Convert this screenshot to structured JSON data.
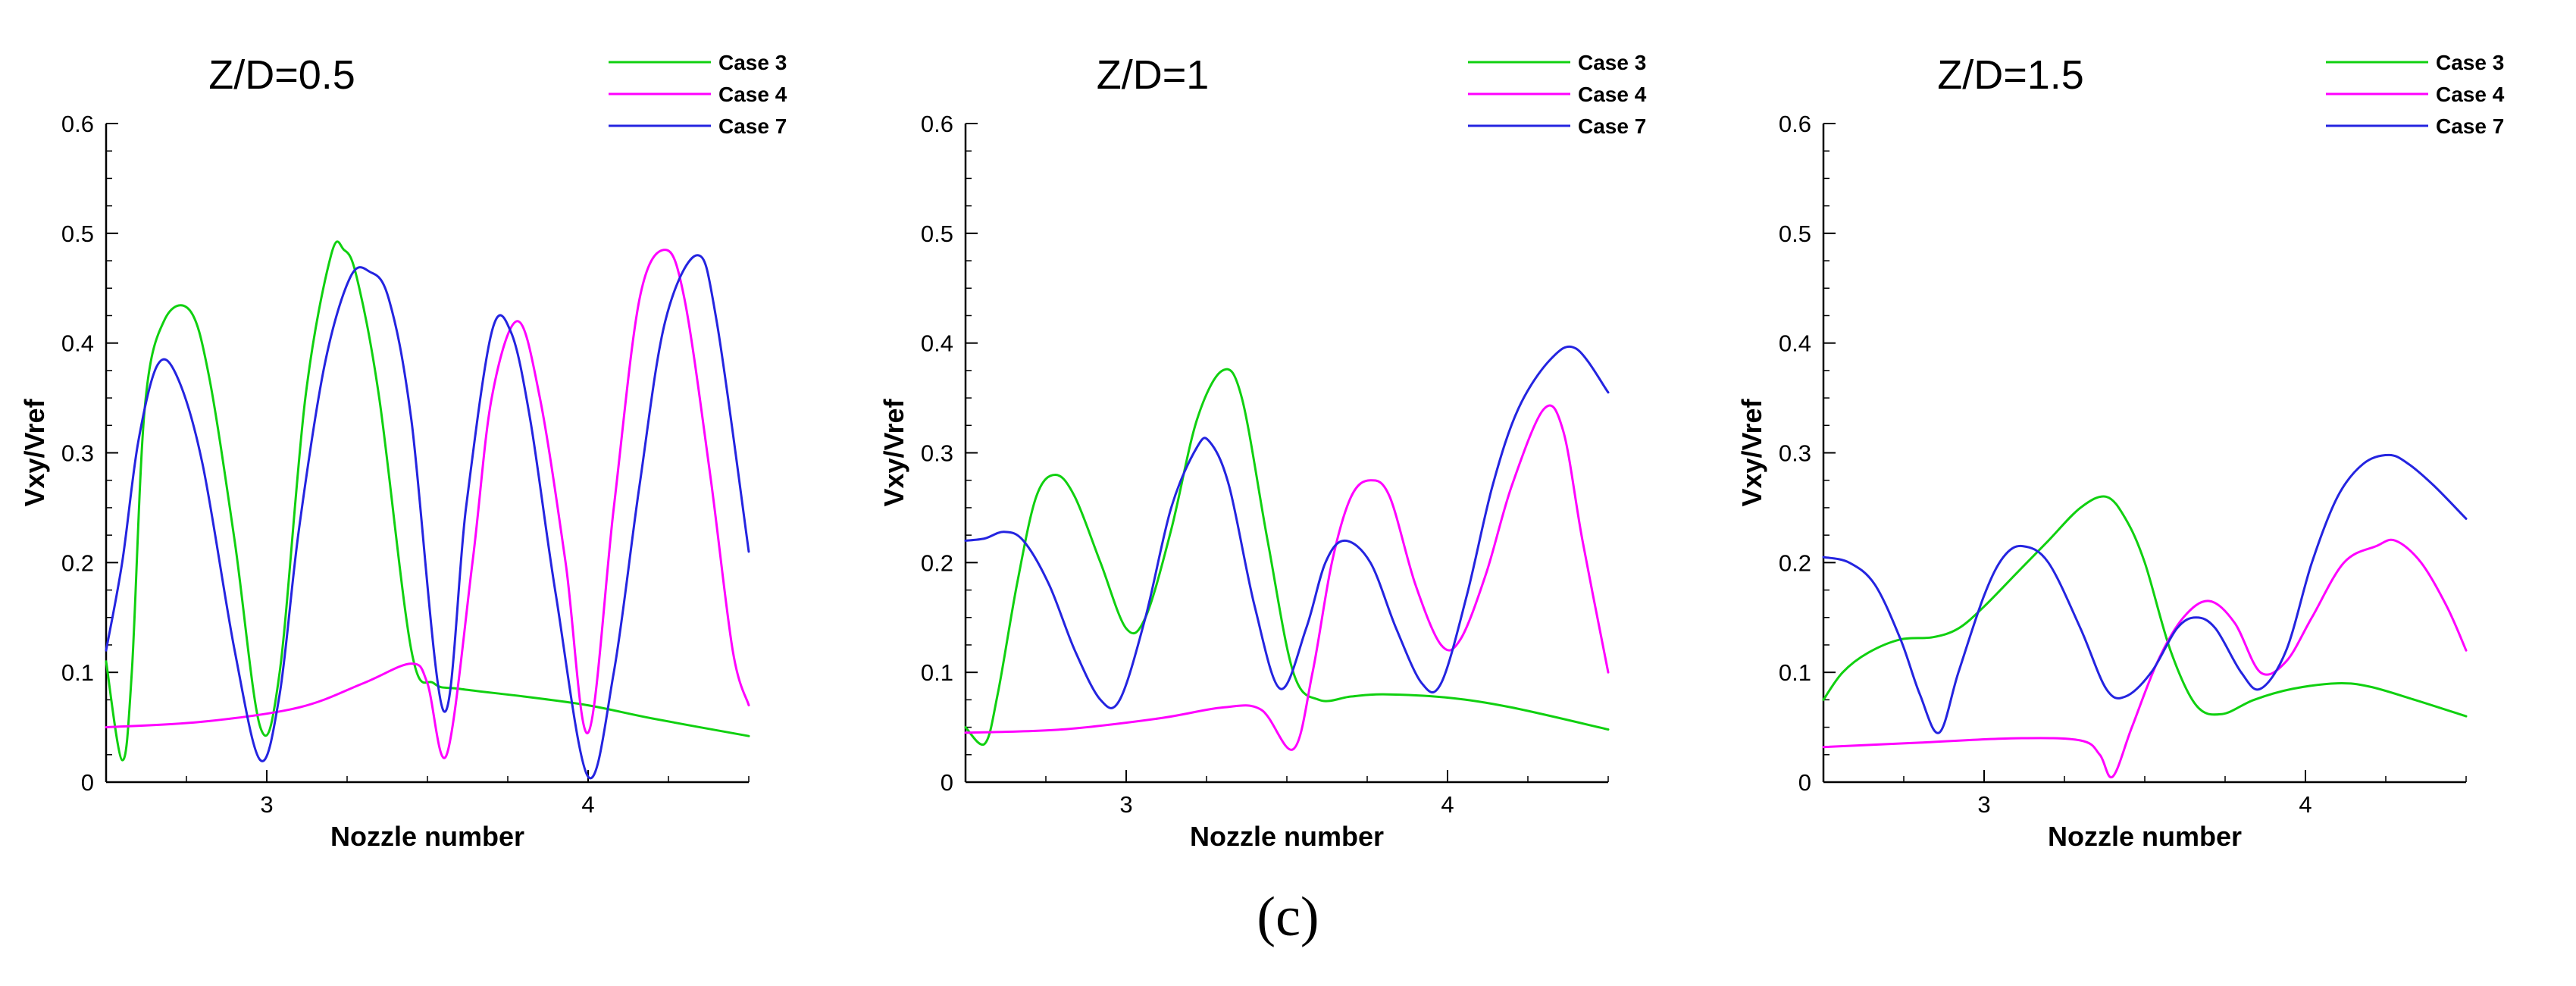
{
  "figure": {
    "caption": "(c)",
    "colors": {
      "case3": "#10d010",
      "case4": "#ff00ff",
      "case7": "#2424e0",
      "axis": "#000000"
    }
  },
  "chart_data": [
    {
      "type": "line",
      "title": "Z/D=0.5",
      "xlabel": "Nozzle number",
      "ylabel": "Vxy/Vref",
      "xlim": [
        2.5,
        4.5
      ],
      "ylim": [
        0,
        0.6
      ],
      "xticks": [
        3,
        4
      ],
      "xtick_labels": [
        "3",
        "4"
      ],
      "yticks": [
        0,
        0.1,
        0.2,
        0.3,
        0.4,
        0.5,
        0.6
      ],
      "ytick_labels": [
        "0",
        "0.1",
        "0.2",
        "0.3",
        "0.4",
        "0.5",
        "0.6"
      ],
      "legend": [
        "Case 3",
        "Case 4",
        "Case 7"
      ],
      "legend_position": "top-right",
      "series": [
        {
          "name": "Case 3",
          "color": "#10d010",
          "x": [
            2.5,
            2.55,
            2.58,
            2.62,
            2.68,
            2.76,
            2.82,
            2.9,
            2.98,
            3.04,
            3.12,
            3.2,
            3.24,
            3.28,
            3.35,
            3.45,
            3.52,
            3.6,
            3.8,
            4.0,
            4.2,
            4.5
          ],
          "y": [
            0.11,
            0.02,
            0.1,
            0.34,
            0.42,
            0.43,
            0.37,
            0.22,
            0.05,
            0.1,
            0.35,
            0.48,
            0.485,
            0.46,
            0.35,
            0.12,
            0.09,
            0.085,
            0.078,
            0.07,
            0.058,
            0.042
          ]
        },
        {
          "name": "Case 4",
          "color": "#ff00ff",
          "x": [
            2.5,
            2.8,
            3.1,
            3.3,
            3.45,
            3.5,
            3.56,
            3.64,
            3.7,
            3.78,
            3.85,
            3.93,
            4.0,
            4.08,
            4.16,
            4.24,
            4.3,
            4.38,
            4.45,
            4.5
          ],
          "y": [
            0.05,
            0.055,
            0.068,
            0.09,
            0.108,
            0.09,
            0.025,
            0.2,
            0.35,
            0.42,
            0.35,
            0.2,
            0.045,
            0.25,
            0.44,
            0.485,
            0.44,
            0.28,
            0.12,
            0.07
          ]
        },
        {
          "name": "Case 7",
          "color": "#2424e0",
          "x": [
            2.5,
            2.55,
            2.6,
            2.66,
            2.72,
            2.8,
            2.9,
            2.98,
            3.04,
            3.1,
            3.18,
            3.26,
            3.32,
            3.38,
            3.45,
            3.55,
            3.62,
            3.7,
            3.76,
            3.82,
            3.9,
            4.0,
            4.08,
            4.16,
            4.24,
            4.34,
            4.4,
            4.5
          ],
          "y": [
            0.12,
            0.2,
            0.31,
            0.38,
            0.37,
            0.29,
            0.12,
            0.02,
            0.08,
            0.23,
            0.38,
            0.46,
            0.465,
            0.44,
            0.33,
            0.065,
            0.25,
            0.41,
            0.41,
            0.33,
            0.17,
            0.005,
            0.1,
            0.27,
            0.42,
            0.48,
            0.42,
            0.21
          ]
        }
      ]
    },
    {
      "type": "line",
      "title": "Z/D=1",
      "xlabel": "Nozzle number",
      "ylabel": "Vxy/Vref",
      "xlim": [
        2.5,
        4.5
      ],
      "ylim": [
        0,
        0.6
      ],
      "xticks": [
        3,
        4
      ],
      "xtick_labels": [
        "3",
        "4"
      ],
      "yticks": [
        0,
        0.1,
        0.2,
        0.3,
        0.4,
        0.5,
        0.6
      ],
      "ytick_labels": [
        "0",
        "0.1",
        "0.2",
        "0.3",
        "0.4",
        "0.5",
        "0.6"
      ],
      "legend": [
        "Case 3",
        "Case 4",
        "Case 7"
      ],
      "legend_position": "top-right",
      "series": [
        {
          "name": "Case 3",
          "color": "#10d010",
          "x": [
            2.5,
            2.56,
            2.6,
            2.66,
            2.72,
            2.78,
            2.84,
            2.92,
            3.0,
            3.06,
            3.14,
            3.22,
            3.3,
            3.36,
            3.44,
            3.52,
            3.6,
            3.7,
            3.8,
            4.0,
            4.2,
            4.5
          ],
          "y": [
            0.05,
            0.035,
            0.08,
            0.18,
            0.26,
            0.28,
            0.26,
            0.2,
            0.14,
            0.15,
            0.23,
            0.33,
            0.375,
            0.35,
            0.22,
            0.1,
            0.075,
            0.078,
            0.08,
            0.077,
            0.068,
            0.048
          ]
        },
        {
          "name": "Case 4",
          "color": "#ff00ff",
          "x": [
            2.5,
            2.8,
            3.1,
            3.3,
            3.42,
            3.52,
            3.58,
            3.64,
            3.7,
            3.76,
            3.82,
            3.9,
            3.98,
            4.04,
            4.12,
            4.2,
            4.3,
            4.36,
            4.42,
            4.5
          ],
          "y": [
            0.045,
            0.048,
            0.058,
            0.068,
            0.066,
            0.03,
            0.1,
            0.2,
            0.26,
            0.275,
            0.26,
            0.18,
            0.125,
            0.13,
            0.19,
            0.27,
            0.34,
            0.32,
            0.22,
            0.1
          ]
        },
        {
          "name": "Case 7",
          "color": "#2424e0",
          "x": [
            2.5,
            2.56,
            2.62,
            2.68,
            2.76,
            2.84,
            2.92,
            2.98,
            3.06,
            3.14,
            3.22,
            3.26,
            3.32,
            3.4,
            3.48,
            3.56,
            3.62,
            3.68,
            3.76,
            3.84,
            3.92,
            3.98,
            4.06,
            4.14,
            4.22,
            4.32,
            4.4,
            4.5
          ],
          "y": [
            0.22,
            0.222,
            0.228,
            0.22,
            0.18,
            0.12,
            0.075,
            0.075,
            0.15,
            0.25,
            0.305,
            0.31,
            0.27,
            0.16,
            0.085,
            0.14,
            0.2,
            0.22,
            0.2,
            0.14,
            0.09,
            0.09,
            0.17,
            0.27,
            0.34,
            0.385,
            0.395,
            0.355
          ]
        }
      ]
    },
    {
      "type": "line",
      "title": "Z/D=1.5",
      "xlabel": "Nozzle number",
      "ylabel": "Vxy/Vref",
      "xlim": [
        2.5,
        4.5
      ],
      "ylim": [
        0,
        0.6
      ],
      "xticks": [
        3,
        4
      ],
      "xtick_labels": [
        "3",
        "4"
      ],
      "yticks": [
        0,
        0.1,
        0.2,
        0.3,
        0.4,
        0.5,
        0.6
      ],
      "ytick_labels": [
        "0",
        "0.1",
        "0.2",
        "0.3",
        "0.4",
        "0.5",
        "0.6"
      ],
      "legend": [
        "Case 3",
        "Case 4",
        "Case 7"
      ],
      "legend_position": "top-right",
      "series": [
        {
          "name": "Case 3",
          "color": "#10d010",
          "x": [
            2.5,
            2.56,
            2.64,
            2.74,
            2.84,
            2.92,
            3.0,
            3.1,
            3.2,
            3.3,
            3.38,
            3.44,
            3.5,
            3.58,
            3.66,
            3.74,
            3.84,
            3.96,
            4.1,
            4.2,
            4.34,
            4.5
          ],
          "y": [
            0.075,
            0.1,
            0.118,
            0.13,
            0.132,
            0.14,
            0.16,
            0.19,
            0.22,
            0.25,
            0.26,
            0.24,
            0.2,
            0.12,
            0.07,
            0.062,
            0.075,
            0.085,
            0.09,
            0.087,
            0.075,
            0.06
          ]
        },
        {
          "name": "Case 4",
          "color": "#ff00ff",
          "x": [
            2.5,
            2.8,
            3.1,
            3.3,
            3.36,
            3.4,
            3.46,
            3.54,
            3.62,
            3.7,
            3.78,
            3.86,
            3.94,
            4.02,
            4.12,
            4.22,
            4.28,
            4.36,
            4.44,
            4.5
          ],
          "y": [
            0.032,
            0.036,
            0.04,
            0.038,
            0.025,
            0.005,
            0.05,
            0.11,
            0.15,
            0.165,
            0.145,
            0.1,
            0.11,
            0.15,
            0.2,
            0.215,
            0.22,
            0.2,
            0.16,
            0.12
          ]
        },
        {
          "name": "Case 7",
          "color": "#2424e0",
          "x": [
            2.5,
            2.58,
            2.66,
            2.74,
            2.8,
            2.86,
            2.92,
            3.0,
            3.06,
            3.12,
            3.2,
            3.3,
            3.38,
            3.44,
            3.52,
            3.6,
            3.66,
            3.72,
            3.8,
            3.86,
            3.94,
            4.02,
            4.1,
            4.18,
            4.26,
            4.32,
            4.4,
            4.5
          ],
          "y": [
            0.205,
            0.2,
            0.18,
            0.13,
            0.08,
            0.045,
            0.1,
            0.17,
            0.205,
            0.215,
            0.2,
            0.14,
            0.085,
            0.078,
            0.1,
            0.14,
            0.15,
            0.14,
            0.1,
            0.085,
            0.12,
            0.2,
            0.26,
            0.29,
            0.298,
            0.29,
            0.27,
            0.24
          ]
        }
      ]
    }
  ]
}
